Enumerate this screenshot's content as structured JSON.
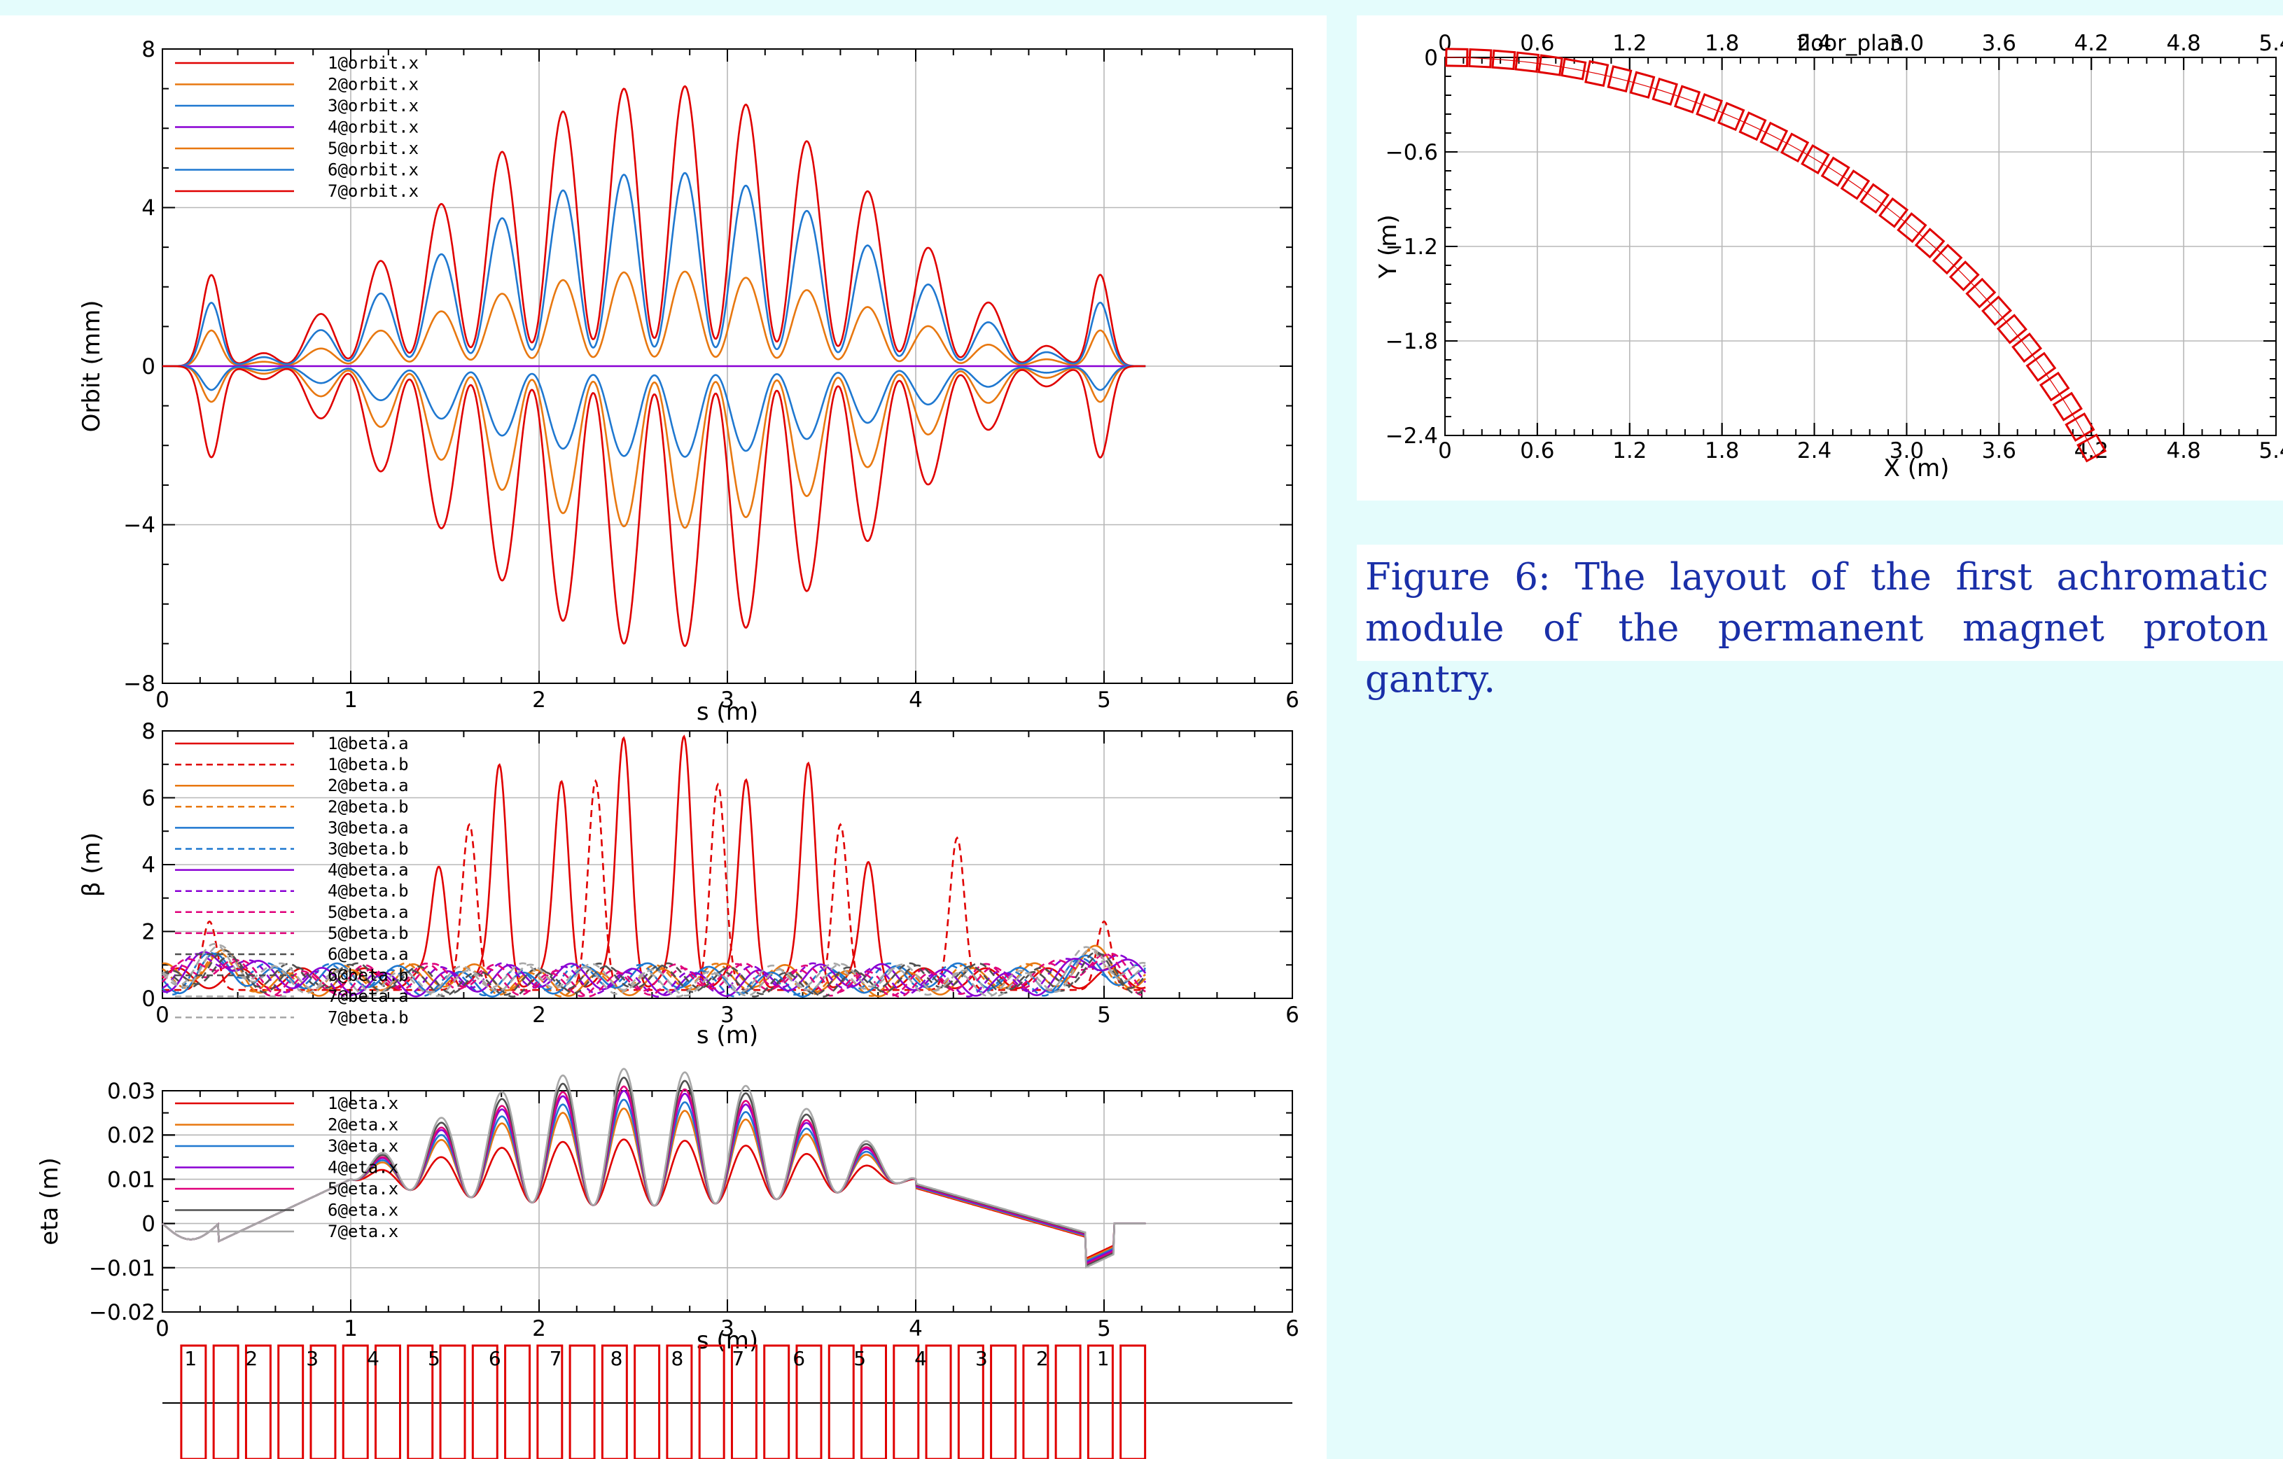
{
  "caption": "Figure 6: The layout of the first achromatic module of the permanent magnet proton gantry.",
  "colors": {
    "red": "#e00000",
    "orange": "#e87810",
    "blue": "#1f78d0",
    "purple": "#8a00d4",
    "magenta": "#e0007a",
    "gray": "#505050",
    "lightgray": "#a8a8a8"
  },
  "chart_data": [
    {
      "type": "line",
      "id": "orbit",
      "xlabel": "s (m)",
      "ylabel": "Orbit (mm)",
      "xlim": [
        0,
        6
      ],
      "ylim": [
        -8,
        8
      ],
      "xticks": [
        0,
        1,
        2,
        3,
        4,
        5,
        6
      ],
      "yticks": [
        -8,
        -4,
        0,
        4,
        8
      ],
      "grid": true,
      "legend_position": "top-left",
      "series": [
        {
          "name": "1@orbit.x",
          "color": "red",
          "amp": 7.1,
          "edge_peak": 2.3
        },
        {
          "name": "2@orbit.x",
          "color": "orange",
          "amp": 2.4,
          "edge_peak": 0.9
        },
        {
          "name": "3@orbit.x",
          "color": "blue",
          "amp": 4.9,
          "edge_peak": 1.6
        },
        {
          "name": "4@orbit.x",
          "color": "purple",
          "amp": 0,
          "edge_peak": 0
        },
        {
          "name": "5@orbit.x",
          "color": "orange",
          "amp": -4.1,
          "edge_peak": -0.9
        },
        {
          "name": "6@orbit.x",
          "color": "blue",
          "amp": -2.3,
          "edge_peak": -0.6
        },
        {
          "name": "7@orbit.x",
          "color": "red",
          "amp": -7.1,
          "edge_peak": -2.3
        }
      ]
    },
    {
      "type": "line",
      "id": "beta",
      "xlabel": "s (m)",
      "ylabel": "β (m)",
      "xlim": [
        0,
        6
      ],
      "ylim": [
        0,
        8
      ],
      "xticks": [
        0,
        2,
        3,
        5,
        6
      ],
      "yticks": [
        0,
        2,
        4,
        6,
        8
      ],
      "grid": true,
      "legend_position": "top-left",
      "series": [
        {
          "name": "1@beta.a",
          "color": "red",
          "dash": false,
          "peaks": [
            [
              1.47,
              3.5
            ],
            [
              1.79,
              6.5
            ],
            [
              2.12,
              6.0
            ],
            [
              2.45,
              7.3
            ],
            [
              2.77,
              7.3
            ],
            [
              3.1,
              6.0
            ],
            [
              3.43,
              6.5
            ],
            [
              3.75,
              3.5
            ]
          ]
        },
        {
          "name": "1@beta.b",
          "color": "red",
          "dash": true,
          "peaks": [
            [
              0.25,
              2.3
            ],
            [
              1.63,
              5.2
            ],
            [
              2.3,
              6.5
            ],
            [
              2.95,
              6.4
            ],
            [
              3.6,
              5.2
            ],
            [
              4.22,
              4.8
            ],
            [
              5.0,
              2.3
            ]
          ]
        },
        {
          "name": "2@beta.a",
          "color": "orange",
          "dash": false
        },
        {
          "name": "2@beta.b",
          "color": "orange",
          "dash": true
        },
        {
          "name": "3@beta.a",
          "color": "blue",
          "dash": false
        },
        {
          "name": "3@beta.b",
          "color": "blue",
          "dash": true
        },
        {
          "name": "4@beta.a",
          "color": "purple",
          "dash": false
        },
        {
          "name": "4@beta.b",
          "color": "purple",
          "dash": true
        },
        {
          "name": "5@beta.a",
          "color": "magenta",
          "dash": true
        },
        {
          "name": "5@beta.b",
          "color": "magenta",
          "dash": true
        },
        {
          "name": "6@beta.a",
          "color": "gray",
          "dash": true
        },
        {
          "name": "6@beta.b",
          "color": "gray",
          "dash": true
        },
        {
          "name": "7@beta.a",
          "color": "lightgray",
          "dash": true
        },
        {
          "name": "7@beta.b",
          "color": "lightgray",
          "dash": true
        }
      ]
    },
    {
      "type": "line",
      "id": "eta",
      "xlabel": "s (m)",
      "ylabel": "eta (m)",
      "xlim": [
        0,
        6
      ],
      "ylim": [
        -0.02,
        0.03
      ],
      "xticks": [
        0,
        1,
        2,
        3,
        4,
        5,
        6
      ],
      "yticks": [
        -0.02,
        -0.01,
        0,
        0.01,
        0.02,
        0.03
      ],
      "ytick_labels": [
        "−0.02",
        "−0.01",
        "0",
        "0.01",
        "0.02",
        "0.03"
      ],
      "grid": true,
      "legend_position": "top-left",
      "series": [
        {
          "name": "1@eta.x",
          "color": "red",
          "peak": 0.013
        },
        {
          "name": "2@eta.x",
          "color": "orange",
          "peak": 0.02
        },
        {
          "name": "3@eta.x",
          "color": "blue",
          "peak": 0.022
        },
        {
          "name": "4@eta.x",
          "color": "purple",
          "peak": 0.024
        },
        {
          "name": "5@eta.x",
          "color": "magenta",
          "peak": 0.025
        },
        {
          "name": "6@eta.x",
          "color": "gray",
          "peak": 0.027
        },
        {
          "name": "7@eta.x",
          "color": "lightgray",
          "peak": 0.029
        }
      ]
    },
    {
      "type": "line",
      "id": "floor_plan",
      "title": "floor_plan",
      "xlabel": "X (m)",
      "ylabel": "Y (m)",
      "xlim": [
        0,
        5.4
      ],
      "ylim": [
        -2.4,
        0
      ],
      "xticks": [
        0,
        0.6,
        1.2,
        1.8,
        2.4,
        3.0,
        3.6,
        4.2,
        4.8,
        5.4
      ],
      "xtick_labels": [
        "0",
        "0.6",
        "1.2",
        "1.8",
        "2.4",
        "3.0",
        "3.6",
        "4.2",
        "4.8",
        "5.4"
      ],
      "yticks": [
        0,
        -0.6,
        -1.2,
        -1.8,
        -2.4
      ],
      "ytick_labels": [
        "0",
        "−0.6",
        "−1.2",
        "−1.8",
        "−2.4"
      ],
      "grid": true,
      "arc": {
        "radius": 4.8,
        "end_angle_deg": 62
      }
    }
  ],
  "lattice": {
    "labels": [
      "1",
      "2",
      "3",
      "4",
      "5",
      "6",
      "7",
      "8",
      "8",
      "7",
      "6",
      "5",
      "4",
      "3",
      "2",
      "1"
    ]
  }
}
